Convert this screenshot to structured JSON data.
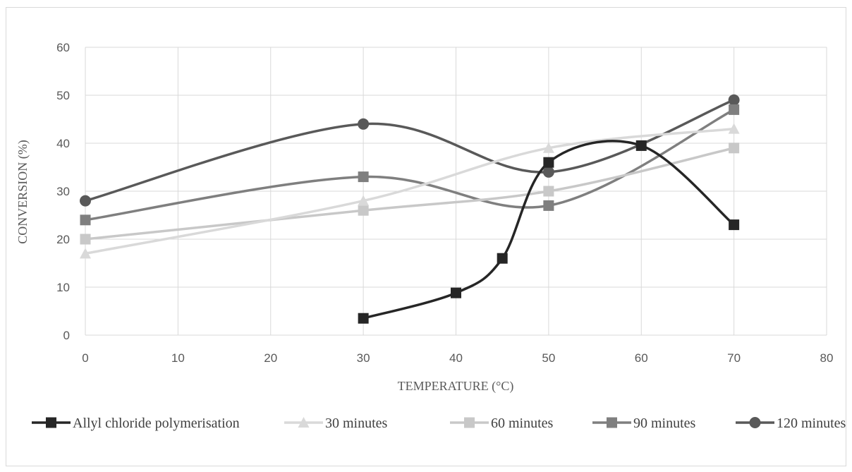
{
  "chart_data": {
    "type": "line",
    "title": "",
    "xlabel": "TEMPERATURE  (°C)",
    "ylabel": "CONVERSION (%)",
    "xlim": [
      0,
      80
    ],
    "ylim": [
      0,
      60
    ],
    "xticks": [
      0,
      10,
      20,
      30,
      40,
      50,
      60,
      70,
      80
    ],
    "yticks": [
      0,
      10,
      20,
      30,
      40,
      50,
      60
    ],
    "grid": true,
    "legend_position": "bottom",
    "series": [
      {
        "name": "Allyl chloride polymerisation",
        "color": "#262626",
        "marker": "square",
        "x": [
          30,
          40,
          45,
          50,
          60,
          70
        ],
        "y": [
          3.5,
          8.8,
          16,
          36,
          39.5,
          23
        ]
      },
      {
        "name": "30 minutes",
        "color": "#d9d9d9",
        "marker": "triangle",
        "x": [
          0,
          30,
          50,
          70
        ],
        "y": [
          17,
          28,
          39,
          43
        ]
      },
      {
        "name": "60 minutes",
        "color": "#c8c8c8",
        "marker": "square",
        "x": [
          0,
          30,
          50,
          70
        ],
        "y": [
          20,
          26,
          30,
          39
        ]
      },
      {
        "name": "90 minutes",
        "color": "#7f7f7f",
        "marker": "square",
        "x": [
          0,
          30,
          50,
          70
        ],
        "y": [
          24,
          33,
          27,
          47
        ]
      },
      {
        "name": "120 minutes",
        "color": "#595959",
        "marker": "circle",
        "x": [
          0,
          30,
          50,
          70
        ],
        "y": [
          28,
          44,
          34,
          49
        ]
      }
    ]
  }
}
